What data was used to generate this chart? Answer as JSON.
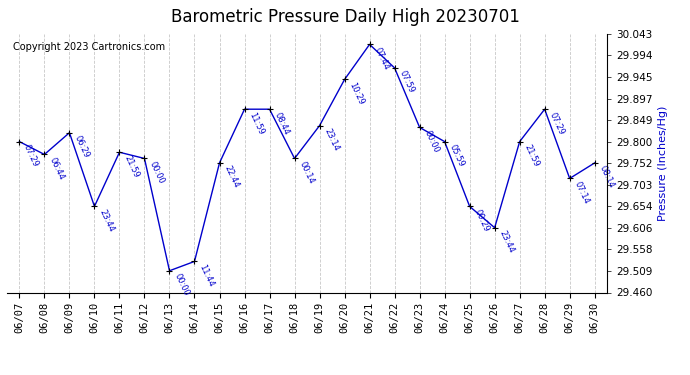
{
  "title": "Barometric Pressure Daily High 20230701",
  "ylabel": "Pressure (Inches/Hg)",
  "copyright": "Copyright 2023 Cartronics.com",
  "ylim": [
    29.46,
    30.043
  ],
  "yticks": [
    29.46,
    29.509,
    29.558,
    29.606,
    29.654,
    29.703,
    29.752,
    29.8,
    29.849,
    29.897,
    29.945,
    29.994,
    30.043
  ],
  "dates": [
    "06/07",
    "06/08",
    "06/09",
    "06/10",
    "06/11",
    "06/12",
    "06/13",
    "06/14",
    "06/15",
    "06/16",
    "06/17",
    "06/18",
    "06/19",
    "06/20",
    "06/21",
    "06/22",
    "06/23",
    "06/24",
    "06/25",
    "06/26",
    "06/27",
    "06/28",
    "06/29",
    "06/30"
  ],
  "values": [
    29.8,
    29.771,
    29.82,
    29.654,
    29.776,
    29.762,
    29.509,
    29.53,
    29.752,
    29.873,
    29.873,
    29.762,
    29.836,
    29.94,
    30.019,
    29.966,
    29.832,
    29.8,
    29.654,
    29.606,
    29.8,
    29.873,
    29.717,
    29.752
  ],
  "time_labels": [
    "07:29",
    "06:44",
    "06:29",
    "23:44",
    "21:59",
    "00:00",
    "00:00",
    "11:44",
    "22:44",
    "11:59",
    "08:44",
    "00:14",
    "23:14",
    "10:29",
    "07:44",
    "07:59",
    "00:00",
    "05:59",
    "00:29",
    "23:44",
    "21:59",
    "07:29",
    "07:14",
    "08:14"
  ],
  "line_color": "#0000cc",
  "marker_color": "#000000",
  "label_color": "#0000cc",
  "ylabel_color": "#0000cc",
  "title_color": "#000000",
  "copyright_color": "#000000",
  "background_color": "#ffffff",
  "grid_color": "#c8c8c8",
  "label_fontsize": 6.0,
  "title_fontsize": 12,
  "ylabel_fontsize": 8,
  "tick_fontsize": 7.5,
  "copyright_fontsize": 7
}
